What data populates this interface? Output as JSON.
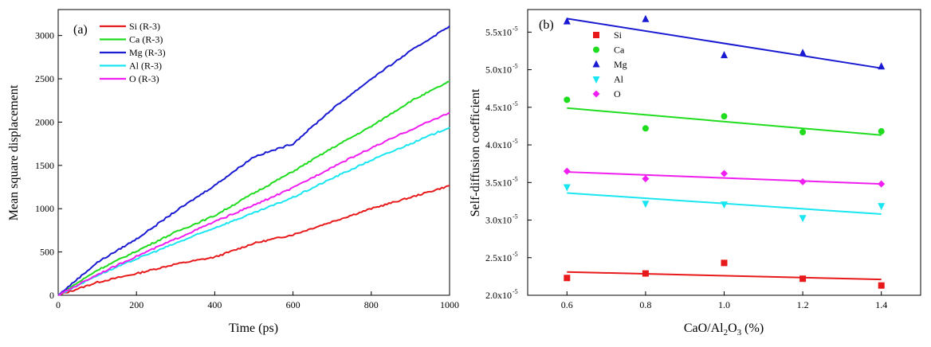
{
  "chart_data": [
    {
      "type": "line",
      "panel_label": "(a)",
      "xlabel": "Time (ps)",
      "ylabel": "Mean square displacement",
      "xlim": [
        0,
        1000
      ],
      "ylim": [
        0,
        3300
      ],
      "xticks": [
        0,
        200,
        400,
        600,
        800,
        1000
      ],
      "yticks": [
        0,
        500,
        1000,
        1500,
        2000,
        2500,
        3000
      ],
      "legend_position": "top-left",
      "x": [
        0,
        100,
        200,
        300,
        400,
        500,
        600,
        700,
        800,
        900,
        1000
      ],
      "series": [
        {
          "name": "Si (R-3)",
          "color": "#e8191a",
          "values": [
            0,
            150,
            250,
            360,
            440,
            600,
            700,
            850,
            1000,
            1130,
            1265
          ]
        },
        {
          "name": "Ca (R-3)",
          "color": "#1fdc1f",
          "values": [
            0,
            290,
            510,
            730,
            920,
            1180,
            1430,
            1700,
            1950,
            2240,
            2470
          ]
        },
        {
          "name": "Mg (R-3)",
          "color": "#1a1ad2",
          "values": [
            0,
            380,
            650,
            970,
            1270,
            1600,
            1750,
            2150,
            2500,
            2820,
            3110
          ]
        },
        {
          "name": "Al (R-3)",
          "color": "#19e6f0",
          "values": [
            0,
            230,
            420,
            600,
            780,
            950,
            1130,
            1350,
            1560,
            1750,
            1940
          ]
        },
        {
          "name": "O (R-3)",
          "color": "#f01ef0",
          "values": [
            0,
            240,
            450,
            650,
            850,
            1040,
            1240,
            1480,
            1700,
            1910,
            2110
          ]
        }
      ]
    },
    {
      "type": "scatter",
      "panel_label": "(b)",
      "xlabel_main": "CaO/Al",
      "xlabel_sub": "2",
      "xlabel_tail": "O",
      "xlabel_sub2": "3",
      "xlabel_end": " (%)",
      "ylabel": "Self-diffusion coefficient",
      "xlim": [
        0.5,
        1.5
      ],
      "ylim": [
        2.0,
        5.8
      ],
      "xticks": [
        "0.6",
        "0.8",
        "1.0",
        "1.2",
        "1.4"
      ],
      "yticks": [
        {
          "value": 2.0,
          "mantissa": "2.0x10",
          "exp": "-5"
        },
        {
          "value": 2.5,
          "mantissa": "2.5x10",
          "exp": "-5"
        },
        {
          "value": 3.0,
          "mantissa": "3.0x10",
          "exp": "-5"
        },
        {
          "value": 3.5,
          "mantissa": "3.5x10",
          "exp": "-5"
        },
        {
          "value": 4.0,
          "mantissa": "4.0x10",
          "exp": "-5"
        },
        {
          "value": 4.5,
          "mantissa": "4.5x10",
          "exp": "-5"
        },
        {
          "value": 5.0,
          "mantissa": "5.0x10",
          "exp": "-5"
        },
        {
          "value": 5.5,
          "mantissa": "5.5x10",
          "exp": "-5"
        }
      ],
      "y_unit_note": "values in units of 1e-5",
      "legend_position": "top-left",
      "x": [
        0.6,
        0.8,
        1.0,
        1.2,
        1.4
      ],
      "series": [
        {
          "name": "Si",
          "color": "#e8191a",
          "marker": "square",
          "values": [
            2.23,
            2.29,
            2.43,
            2.22,
            2.13
          ],
          "fit": [
            2.31,
            2.21
          ]
        },
        {
          "name": "Ca",
          "color": "#1fdc1f",
          "marker": "circle",
          "values": [
            4.6,
            4.22,
            4.38,
            4.17,
            4.18
          ],
          "fit": [
            4.49,
            4.13
          ]
        },
        {
          "name": "Mg",
          "color": "#1a1ad2",
          "marker": "triangle-up",
          "values": [
            5.64,
            5.67,
            5.19,
            5.22,
            5.04
          ],
          "fit": [
            5.68,
            5.02
          ]
        },
        {
          "name": "Al",
          "color": "#19e6f0",
          "marker": "triangle-down",
          "values": [
            3.44,
            3.22,
            3.21,
            3.03,
            3.19
          ],
          "fit": [
            3.36,
            3.08
          ]
        },
        {
          "name": "O",
          "color": "#f01ef0",
          "marker": "diamond",
          "values": [
            3.65,
            3.55,
            3.62,
            3.51,
            3.48
          ],
          "fit": [
            3.64,
            3.48
          ]
        }
      ]
    }
  ]
}
